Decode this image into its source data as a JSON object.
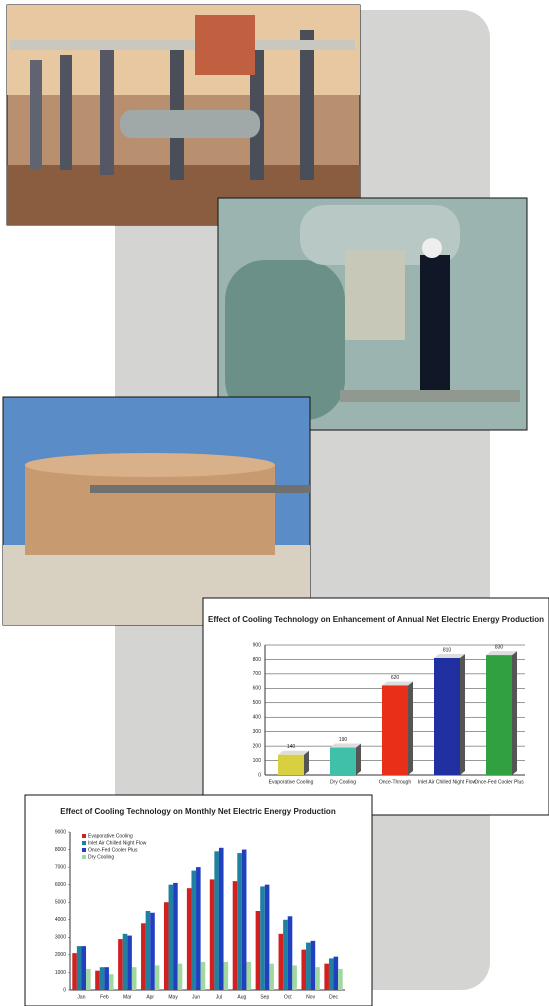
{
  "chart_data": [
    {
      "type": "bar3d",
      "title": "Effect of Cooling Technology on Enhancement of Annual Net Electric Energy Production",
      "categories": [
        "Evaporative Cooling",
        "Dry Cooling",
        "Once-Through",
        "Inlet Air Chilled Night Flow",
        "Once-Fed Cooler Plus"
      ],
      "values": [
        140,
        190,
        620,
        810,
        830
      ],
      "colors": [
        "#d8d040",
        "#40c0a8",
        "#e83018",
        "#2030a0",
        "#30a040"
      ],
      "ylim": [
        0,
        900
      ],
      "yticks": [
        0,
        100,
        200,
        300,
        400,
        500,
        600,
        700,
        800,
        900
      ],
      "grid": true
    },
    {
      "type": "grouped-bar",
      "title": "Effect of Cooling Technology on Monthly Net Electric Energy Production",
      "categories": [
        "Jan",
        "Feb",
        "Mar",
        "Apr",
        "May",
        "Jun",
        "Jul",
        "Aug",
        "Sep",
        "Oct",
        "Nov",
        "Dec"
      ],
      "series": [
        {
          "name": "Evaporative Cooling",
          "color": "#d02020",
          "values": [
            2100,
            1100,
            2900,
            3800,
            5000,
            5800,
            6300,
            6200,
            4500,
            3200,
            2300,
            1500
          ]
        },
        {
          "name": "Inlet Air Chilled Night Flow",
          "color": "#2080a0",
          "values": [
            2500,
            1300,
            3200,
            4500,
            6000,
            6800,
            7900,
            7800,
            5900,
            4000,
            2700,
            1800
          ]
        },
        {
          "name": "Once-Fed Cooler Plus",
          "color": "#2040c0",
          "values": [
            2500,
            1300,
            3100,
            4400,
            6100,
            7000,
            8100,
            8000,
            6000,
            4200,
            2800,
            1900
          ]
        },
        {
          "name": "Dry Cooling",
          "color": "#a0d8a0",
          "values": [
            1200,
            900,
            1300,
            1400,
            1500,
            1600,
            1600,
            1600,
            1500,
            1400,
            1300,
            1200
          ]
        }
      ],
      "ylim": [
        0,
        9000
      ],
      "yticks": [
        0,
        1000,
        2000,
        3000,
        4000,
        5000,
        6000,
        7000,
        8000,
        9000
      ],
      "grid": false
    }
  ]
}
